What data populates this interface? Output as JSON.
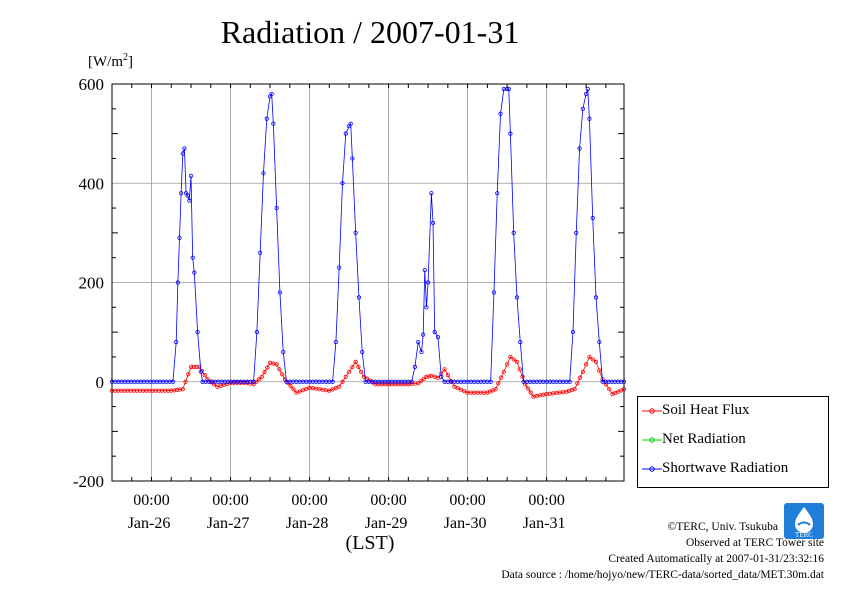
{
  "chart_data": {
    "type": "line",
    "title": "Radiation / 2007-01-31",
    "unit_label_prefix": "[W/m",
    "unit_label_sup": "2",
    "unit_label_suffix": "]",
    "xlabel": "(LST)",
    "x_range": [
      "2007-01-25 12:00",
      "2007-01-31 23:30"
    ],
    "ylim": [
      -200,
      600
    ],
    "y_ticks": [
      -200,
      0,
      200,
      400,
      600
    ],
    "y_tick_labels": [
      "-200",
      "0",
      "200",
      "400",
      "600"
    ],
    "x_tick_time_label": "00:00",
    "x_day_labels": [
      "Jan-26",
      "Jan-27",
      "Jan-28",
      "Jan-29",
      "Jan-30",
      "Jan-31"
    ],
    "grid": true,
    "legend_position": "bottom-right",
    "series": [
      {
        "name": "Soil Heat Flux",
        "color": "#ff0000",
        "x": [
          "01-25 12:00",
          "01-26 06:00",
          "01-26 09:30",
          "01-26 12:00",
          "01-26 14:30",
          "01-26 17:00",
          "01-26 20:00",
          "01-27 00:00",
          "01-27 05:00",
          "01-27 07:00",
          "01-27 09:30",
          "01-27 12:00",
          "01-27 14:00",
          "01-27 16:30",
          "01-27 20:00",
          "01-28 00:00",
          "01-28 03:00",
          "01-28 06:00",
          "01-28 09:00",
          "01-28 12:00",
          "01-28 14:00",
          "01-28 16:30",
          "01-28 20:00",
          "01-29 00:00",
          "01-29 06:00",
          "01-29 09:00",
          "01-29 11:30",
          "01-29 13:00",
          "01-29 15:00",
          "01-29 17:00",
          "01-29 20:00",
          "01-30 00:00",
          "01-30 06:00",
          "01-30 08:30",
          "01-30 11:00",
          "01-30 13:00",
          "01-30 15:00",
          "01-30 17:30",
          "01-30 20:00",
          "01-31 00:00",
          "01-31 06:00",
          "01-31 08:30",
          "01-31 11:00",
          "01-31 13:00",
          "01-31 15:00",
          "01-31 17:00",
          "01-31 20:00",
          "01-31 23:30"
        ],
        "values": [
          -18,
          -18,
          -15,
          30,
          30,
          5,
          -10,
          -2,
          -2,
          -5,
          10,
          38,
          35,
          5,
          -22,
          -12,
          -15,
          -18,
          -10,
          20,
          40,
          10,
          -5,
          -5,
          -5,
          -3,
          10,
          12,
          8,
          25,
          -10,
          -22,
          -22,
          -15,
          20,
          50,
          40,
          -5,
          -30,
          -25,
          -20,
          -15,
          20,
          50,
          40,
          5,
          -25,
          -15
        ]
      },
      {
        "name": "Net Radiation",
        "color": "#00cc00",
        "x": [],
        "values": []
      },
      {
        "name": "Shortwave Radiation",
        "color": "#0000ff",
        "x": [
          "01-25 12:00",
          "01-26 06:30",
          "01-26 07:30",
          "01-26 08:00",
          "01-26 08:30",
          "01-26 09:00",
          "01-26 09:30",
          "01-26 10:00",
          "01-26 10:30",
          "01-26 11:00",
          "01-26 11:30",
          "01-26 12:00",
          "01-26 12:30",
          "01-26 13:00",
          "01-26 14:00",
          "01-26 15:00",
          "01-26 15:30",
          "01-27 07:00",
          "01-27 08:00",
          "01-27 09:00",
          "01-27 10:00",
          "01-27 11:00",
          "01-27 12:00",
          "01-27 12:30",
          "01-27 13:00",
          "01-27 14:00",
          "01-27 15:00",
          "01-27 16:00",
          "01-27 17:00",
          "01-28 07:00",
          "01-28 08:00",
          "01-28 09:00",
          "01-28 10:00",
          "01-28 11:00",
          "01-28 12:00",
          "01-28 12:30",
          "01-28 13:00",
          "01-28 14:00",
          "01-28 15:00",
          "01-28 16:00",
          "01-28 17:00",
          "01-29 07:00",
          "01-29 08:00",
          "01-29 09:00",
          "01-29 10:00",
          "01-29 10:30",
          "01-29 11:00",
          "01-29 11:30",
          "01-29 12:00",
          "01-29 13:00",
          "01-29 13:30",
          "01-29 14:00",
          "01-29 15:00",
          "01-29 16:00",
          "01-29 17:00",
          "01-30 07:00",
          "01-30 08:00",
          "01-30 09:00",
          "01-30 10:00",
          "01-30 11:00",
          "01-30 12:00",
          "01-30 12:30",
          "01-30 13:00",
          "01-30 14:00",
          "01-30 15:00",
          "01-30 16:00",
          "01-30 17:00",
          "01-31 07:00",
          "01-31 08:00",
          "01-31 09:00",
          "01-31 10:00",
          "01-31 11:00",
          "01-31 12:00",
          "01-31 12:30",
          "01-31 13:00",
          "01-31 14:00",
          "01-31 15:00",
          "01-31 16:00",
          "01-31 17:00",
          "01-31 23:30"
        ],
        "values": [
          0,
          0,
          80,
          200,
          290,
          380,
          460,
          470,
          380,
          375,
          365,
          415,
          250,
          220,
          100,
          20,
          0,
          0,
          100,
          260,
          420,
          530,
          575,
          580,
          520,
          350,
          180,
          60,
          0,
          0,
          80,
          230,
          400,
          500,
          515,
          520,
          450,
          300,
          170,
          60,
          0,
          0,
          30,
          80,
          60,
          95,
          225,
          150,
          200,
          380,
          320,
          100,
          90,
          10,
          0,
          0,
          180,
          380,
          540,
          590,
          590,
          590,
          500,
          300,
          170,
          80,
          0,
          0,
          100,
          300,
          470,
          550,
          580,
          590,
          530,
          330,
          170,
          80,
          0,
          0
        ]
      }
    ]
  },
  "credits": {
    "copyright": "©TERC, Univ. Tsukuba",
    "observed": "Observed at TERC Tower site",
    "created": "Created Automatically at 2007-01-31/23:32:16",
    "source": "Data source : /home/hojyo/new/TERC-data/sorted_data/MET.30m.dat"
  },
  "logo_text": "TERC"
}
